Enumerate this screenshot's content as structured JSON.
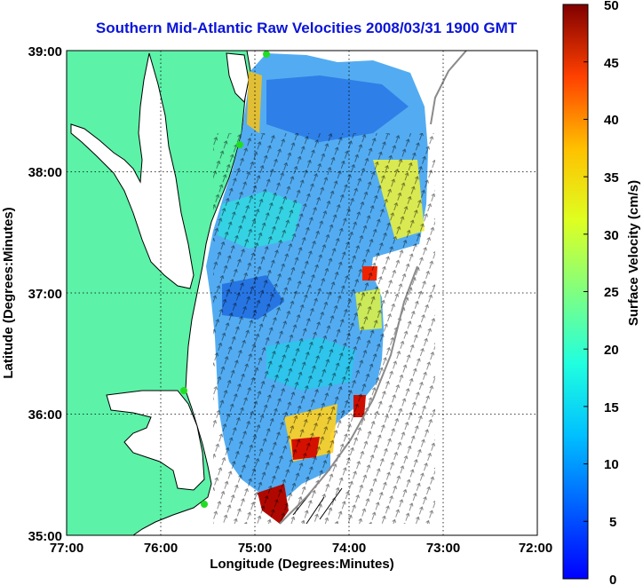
{
  "title": "Southern Mid-Atlantic Raw Velocities 2008/03/31 1900 GMT",
  "axes": {
    "xlabel": "Longitude (Degrees:Minutes)",
    "ylabel": "Latitude (Degrees:Minutes)",
    "x_ticks": [
      "77:00",
      "76:00",
      "75:00",
      "74:00",
      "73:00",
      "72:00"
    ],
    "y_ticks": [
      "39:00",
      "38:00",
      "37:00",
      "36:00",
      "35:00"
    ],
    "xlim": [
      -77,
      -72
    ],
    "ylim": [
      35,
      39
    ],
    "grid": "dotted"
  },
  "colorbar": {
    "label": "Surface Velocity (cm/s)",
    "ticks": [
      "50",
      "45",
      "40",
      "35",
      "30",
      "25",
      "20",
      "15",
      "10",
      "5",
      "0"
    ],
    "range": [
      0,
      50
    ],
    "colormap": "jet"
  },
  "colors": {
    "title": "#0a14d8",
    "land": "#5cf2a8",
    "coast": "#000000",
    "station": "#22dd22"
  }
}
